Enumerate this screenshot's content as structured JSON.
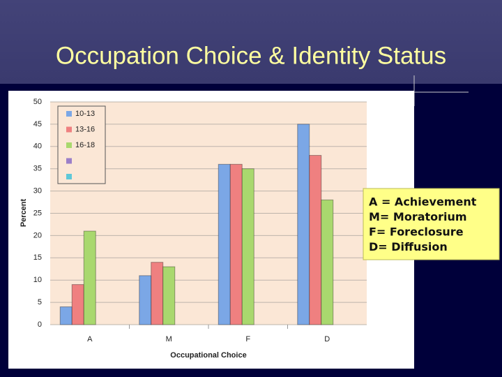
{
  "chart_data": {
    "type": "bar",
    "title": "Occupation Choice & Identity Status",
    "categories": [
      "A",
      "M",
      "F",
      "D"
    ],
    "series": [
      {
        "name": "10-13",
        "color": "#7ba7e6",
        "values": [
          4,
          11,
          36,
          45
        ]
      },
      {
        "name": "13-16",
        "color": "#ef8080",
        "values": [
          9,
          14,
          36,
          38
        ]
      },
      {
        "name": "16-18",
        "color": "#a9d86e",
        "values": [
          21,
          13,
          35,
          28
        ]
      },
      {
        "name": null,
        "color": "#9b7fc8",
        "values": [
          null,
          null,
          null,
          null
        ]
      },
      {
        "name": null,
        "color": "#5fc8d8",
        "values": [
          null,
          null,
          null,
          null
        ]
      }
    ],
    "ylim": [
      0,
      50
    ],
    "yticks": [
      0,
      5,
      10,
      15,
      20,
      25,
      30,
      35,
      40,
      45,
      50
    ],
    "grid": true,
    "xlabel": "Occupational Choice",
    "ylabel": "Percent",
    "legend": "upper left",
    "annotation": [
      "A = Achievement",
      "M= Moratorium",
      "F= Foreclosure",
      "D= Diffusion"
    ]
  }
}
